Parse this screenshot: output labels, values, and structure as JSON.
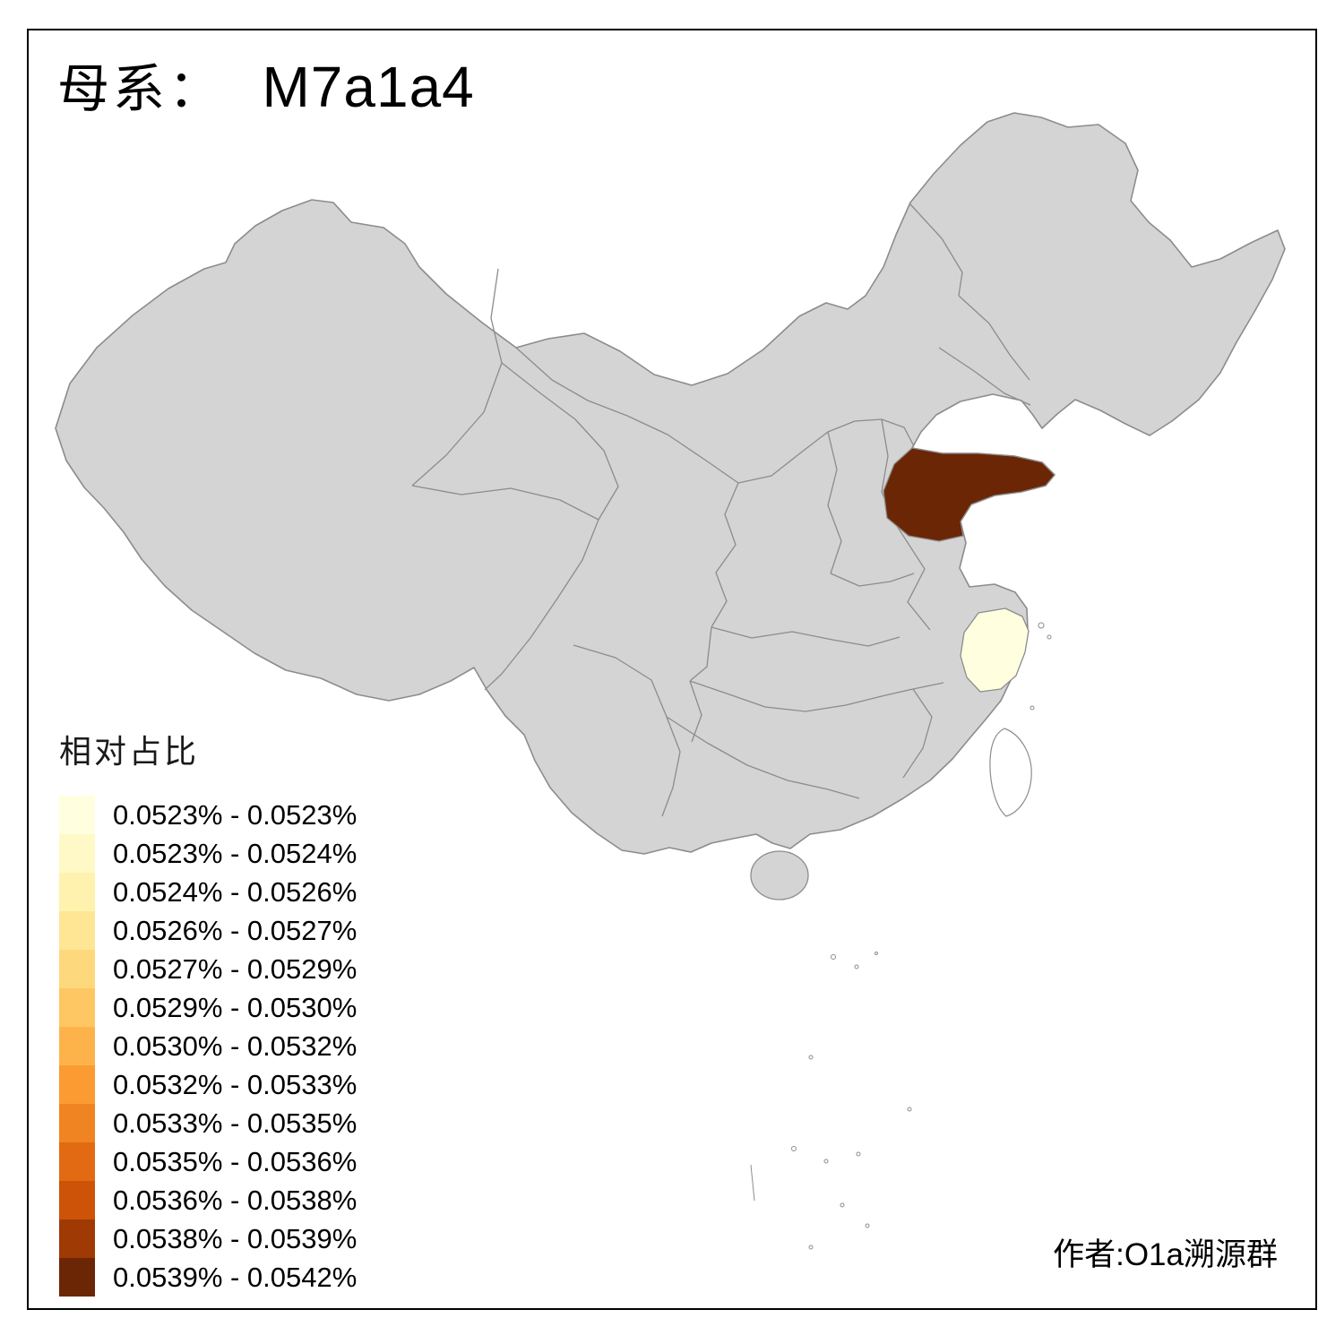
{
  "title": {
    "prefix": "母系：",
    "value": "M7a1a4"
  },
  "legend": {
    "title": "相对占比",
    "items": [
      {
        "label": "0.0523% - 0.0523%",
        "color": "#ffffe0"
      },
      {
        "label": "0.0523% - 0.0524%",
        "color": "#fff9c7"
      },
      {
        "label": "0.0524% - 0.0526%",
        "color": "#fef2ae"
      },
      {
        "label": "0.0526% - 0.0527%",
        "color": "#fee695"
      },
      {
        "label": "0.0527% - 0.0529%",
        "color": "#fed87c"
      },
      {
        "label": "0.0529% - 0.0530%",
        "color": "#fec763"
      },
      {
        "label": "0.0530% - 0.0532%",
        "color": "#feb34a"
      },
      {
        "label": "0.0532% - 0.0533%",
        "color": "#fb9b32"
      },
      {
        "label": "0.0533% - 0.0535%",
        "color": "#f08422"
      },
      {
        "label": "0.0535% - 0.0536%",
        "color": "#e26a13"
      },
      {
        "label": "0.0536% - 0.0538%",
        "color": "#cc5308"
      },
      {
        "label": "0.0538% - 0.0539%",
        "color": "#a03a04"
      },
      {
        "label": "0.0539% - 0.0542%",
        "color": "#6b2605"
      }
    ]
  },
  "author": "作者:O1a溯源群",
  "map": {
    "colors": {
      "base_fill": "#d4d4d4",
      "border_color": "#8c8c8c",
      "highlight_dark": "#6b2605",
      "highlight_light": "#ffffe0",
      "sea_fill": "#ffffff"
    },
    "highlighted_regions": [
      {
        "name": "Shandong",
        "bin": "0.0539% - 0.0542%"
      },
      {
        "name": "Zhejiang",
        "bin": "0.0523% - 0.0523%"
      }
    ]
  }
}
